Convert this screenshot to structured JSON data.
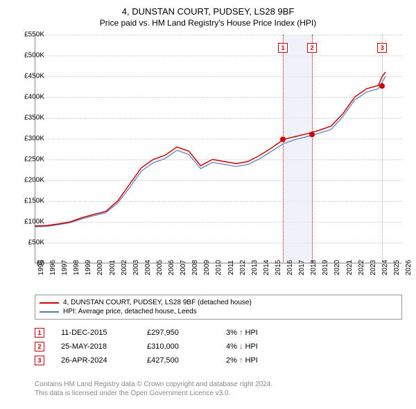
{
  "title": "4, DUNSTAN COURT, PUDSEY, LS28 9BF",
  "subtitle": "Price paid vs. HM Land Registry's House Price Index (HPI)",
  "chart": {
    "type": "line",
    "x_years": [
      1995,
      1996,
      1997,
      1998,
      1999,
      2000,
      2001,
      2002,
      2003,
      2004,
      2005,
      2006,
      2007,
      2008,
      2009,
      2010,
      2011,
      2012,
      2013,
      2014,
      2015,
      2016,
      2017,
      2018,
      2019,
      2020,
      2021,
      2022,
      2023,
      2024,
      2025,
      2026
    ],
    "ylim": [
      0,
      550000
    ],
    "ytick_step": 50000,
    "ytick_labels": [
      "£0",
      "£50K",
      "£100K",
      "£150K",
      "£200K",
      "£250K",
      "£300K",
      "£350K",
      "£400K",
      "£450K",
      "£500K",
      "£550K"
    ],
    "grid_color": "#cccccc",
    "axis_color": "#888888",
    "background_color": "#ffffff",
    "highlight_band_color": "#e8ecf5",
    "highlight_band": {
      "x_start": 2015.95,
      "x_end": 2018.4
    },
    "vlines": [
      {
        "x": 2015.95,
        "color": "#d00000"
      },
      {
        "x": 2018.4,
        "color": "#d00000"
      },
      {
        "x": 2024.32,
        "color": "#9aa4c8"
      }
    ],
    "marker_boxes": [
      {
        "label": "1",
        "x": 2015.95
      },
      {
        "label": "2",
        "x": 2018.4
      },
      {
        "label": "3",
        "x": 2024.32
      }
    ],
    "series_red": {
      "color": "#d00000",
      "width": 1.5,
      "data": [
        [
          1995,
          90000
        ],
        [
          1996,
          91000
        ],
        [
          1997,
          95000
        ],
        [
          1998,
          100000
        ],
        [
          1999,
          110000
        ],
        [
          2000,
          118000
        ],
        [
          2001,
          125000
        ],
        [
          2002,
          150000
        ],
        [
          2003,
          190000
        ],
        [
          2004,
          230000
        ],
        [
          2005,
          250000
        ],
        [
          2006,
          260000
        ],
        [
          2007,
          280000
        ],
        [
          2008,
          270000
        ],
        [
          2009,
          235000
        ],
        [
          2010,
          250000
        ],
        [
          2011,
          245000
        ],
        [
          2012,
          240000
        ],
        [
          2013,
          245000
        ],
        [
          2014,
          260000
        ],
        [
          2015,
          278000
        ],
        [
          2016,
          298000
        ],
        [
          2017,
          305000
        ],
        [
          2018,
          312000
        ],
        [
          2019,
          320000
        ],
        [
          2020,
          330000
        ],
        [
          2021,
          360000
        ],
        [
          2022,
          400000
        ],
        [
          2023,
          420000
        ],
        [
          2024,
          428000
        ],
        [
          2024.32,
          450000
        ],
        [
          2024.6,
          460000
        ]
      ]
    },
    "series_blue": {
      "color": "#5577bb",
      "width": 1.2,
      "data": [
        [
          1995,
          88000
        ],
        [
          1996,
          89000
        ],
        [
          1997,
          93000
        ],
        [
          1998,
          98000
        ],
        [
          1999,
          107000
        ],
        [
          2000,
          115000
        ],
        [
          2001,
          122000
        ],
        [
          2002,
          145000
        ],
        [
          2003,
          182000
        ],
        [
          2004,
          222000
        ],
        [
          2005,
          242000
        ],
        [
          2006,
          252000
        ],
        [
          2007,
          272000
        ],
        [
          2008,
          262000
        ],
        [
          2009,
          228000
        ],
        [
          2010,
          243000
        ],
        [
          2011,
          238000
        ],
        [
          2012,
          233000
        ],
        [
          2013,
          238000
        ],
        [
          2014,
          252000
        ],
        [
          2015,
          270000
        ],
        [
          2016,
          288000
        ],
        [
          2017,
          298000
        ],
        [
          2018,
          305000
        ],
        [
          2019,
          313000
        ],
        [
          2020,
          322000
        ],
        [
          2021,
          353000
        ],
        [
          2022,
          393000
        ],
        [
          2023,
          412000
        ],
        [
          2024,
          420000
        ],
        [
          2024.6,
          450000
        ]
      ]
    },
    "data_points": [
      {
        "x": 2015.95,
        "y": 297950
      },
      {
        "x": 2018.4,
        "y": 310000
      },
      {
        "x": 2024.32,
        "y": 427500
      }
    ],
    "point_color": "#d00000"
  },
  "legend": {
    "border_color": "#999999",
    "items": [
      {
        "color": "#d00000",
        "label": "4, DUNSTAN COURT, PUDSEY, LS28 9BF (detached house)"
      },
      {
        "color": "#5577bb",
        "label": "HPI: Average price, detached house, Leeds"
      }
    ]
  },
  "sales": [
    {
      "n": "1",
      "date": "11-DEC-2015",
      "price": "£297,950",
      "diff": "3% ↑ HPI",
      "arrow_color": "#2a8a2a"
    },
    {
      "n": "2",
      "date": "25-MAY-2018",
      "price": "£310,000",
      "diff": "4% ↓ HPI",
      "arrow_color": "#cc3333"
    },
    {
      "n": "3",
      "date": "26-APR-2024",
      "price": "£427,500",
      "diff": "2% ↑ HPI",
      "arrow_color": "#2a8a2a"
    }
  ],
  "footer": {
    "line1": "Contains HM Land Registry data © Crown copyright and database right 2024.",
    "line2": "This data is licensed under the Open Government Licence v3.0.",
    "color": "#888888"
  }
}
